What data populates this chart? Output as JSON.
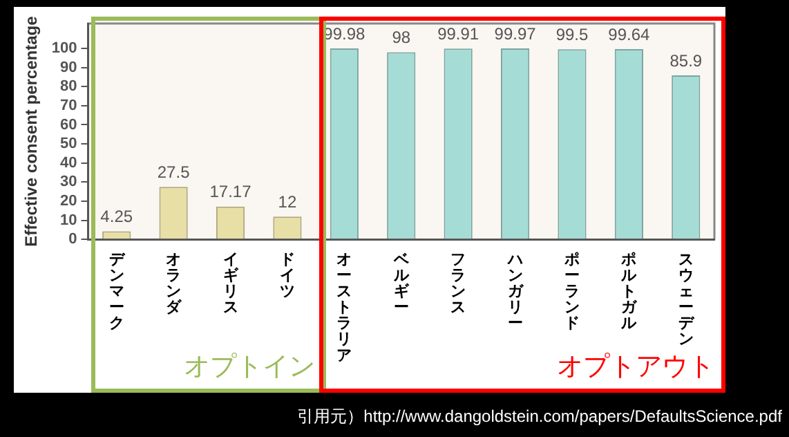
{
  "chart_data": {
    "type": "bar",
    "ylabel": "Effective consent percentage",
    "categories": [
      "デンマーク",
      "オランダ",
      "イギリス",
      "ドイツ",
      "オーストラリア",
      "ベルギー",
      "フランス",
      "ハンガリー",
      "ポーランド",
      "ポルトガル",
      "スウェーデン"
    ],
    "values": [
      4.25,
      27.5,
      17.17,
      12,
      99.98,
      98,
      99.91,
      99.97,
      99.5,
      99.64,
      85.9
    ],
    "colors": [
      "#e8dfa6",
      "#e8dfa6",
      "#e8dfa6",
      "#e8dfa6",
      "#a6dcd6",
      "#a6dcd6",
      "#a6dcd6",
      "#a6dcd6",
      "#a6dcd6",
      "#a6dcd6",
      "#a6dcd6"
    ],
    "ylim": [
      0,
      113
    ],
    "yticks": [
      0,
      10,
      20,
      30,
      40,
      50,
      60,
      70,
      80,
      90,
      100
    ],
    "grid": false,
    "data_labels": true,
    "legend": false,
    "annotations": [
      "オプトイン",
      "オプトアウト",
      "引用元）http://www.dangoldstein.com/papers/DefaultsScience.pdf"
    ]
  }
}
